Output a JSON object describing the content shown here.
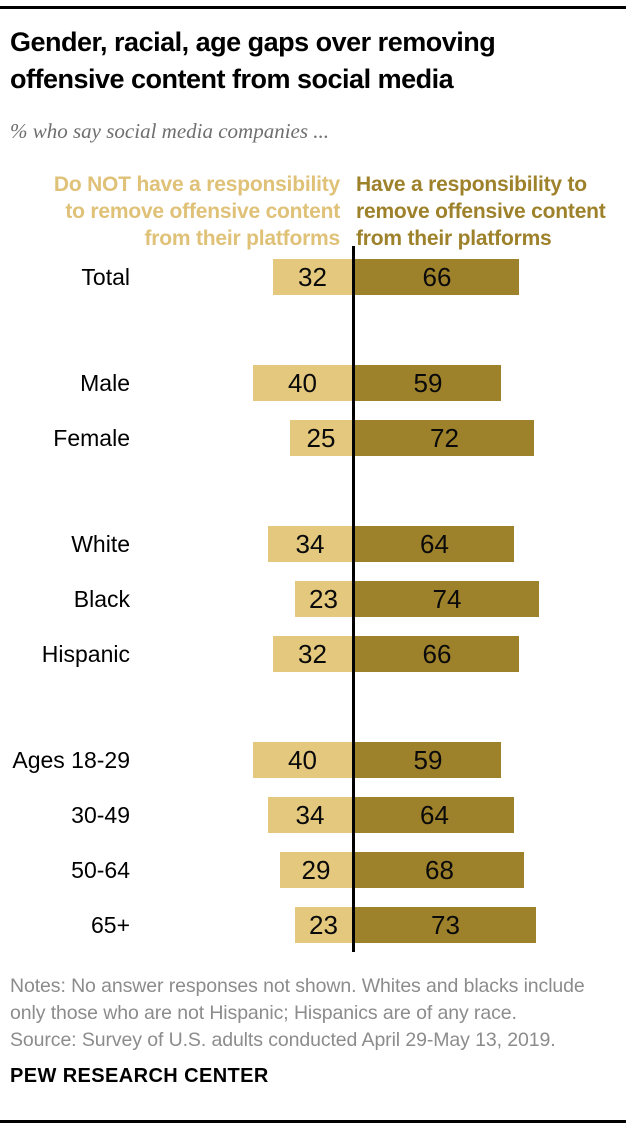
{
  "header": {
    "title": "Gender, racial, age gaps over removing offensive content from social media",
    "title_lines": [
      "Gender, racial, age gaps over removing",
      "offensive content from social media"
    ],
    "subtitle": "% who say social media companies ..."
  },
  "legend": {
    "left_label": "Do NOT have a responsibility to remove offensive content from their platforms",
    "left_lines": [
      "Do NOT have a responsibility",
      "to remove offensive content",
      "from their platforms"
    ],
    "right_label": "Have a responsibility to remove offensive content from their platforms",
    "right_lines": [
      "Have a responsibility to",
      "remove offensive content",
      "from their platforms"
    ]
  },
  "colors": {
    "light_gold": "#E3C87E",
    "dark_gold": "#9E812B",
    "legend_left_text": "#DFC178",
    "legend_right_text": "#9E812B",
    "axis_line": "#000000",
    "value_text": "#0a0a0a"
  },
  "chart_data": {
    "type": "bar",
    "orientation": "horizontal-diverging",
    "title": "Gender, racial, age gaps over removing offensive content from social media",
    "subtitle": "% who say social media companies ...",
    "unit": "%",
    "categories": [
      "Total",
      "Male",
      "Female",
      "White",
      "Black",
      "Hispanic",
      "Ages 18-29",
      "30-49",
      "50-64",
      "65+"
    ],
    "groups": [
      [
        0
      ],
      [
        1,
        2
      ],
      [
        3,
        4,
        5
      ],
      [
        6,
        7,
        8,
        9
      ]
    ],
    "series": [
      {
        "name": "Do NOT have a responsibility to remove offensive content from their platforms",
        "side": "left",
        "color": "#E3C87E",
        "values": [
          32,
          40,
          25,
          34,
          23,
          32,
          40,
          34,
          29,
          23
        ]
      },
      {
        "name": "Have a responsibility to remove offensive content from their platforms",
        "side": "right",
        "color": "#9E812B",
        "values": [
          66,
          59,
          72,
          64,
          74,
          66,
          59,
          64,
          68,
          73
        ]
      }
    ],
    "value_labels": true,
    "center_line": true,
    "grid": false,
    "legend_position": "top",
    "xlabel": "",
    "ylabel": ""
  },
  "footer": {
    "notes": "Notes: No answer responses not shown. Whites and blacks include only those who are not Hispanic; Hispanics are of any race.",
    "notes_lines": [
      "Notes: No answer responses not shown. Whites and blacks include",
      "only those who are not Hispanic; Hispanics are of any race."
    ],
    "source": "Source: Survey of U.S. adults conducted April 29-May 13, 2019.",
    "brand": "PEW RESEARCH CENTER"
  }
}
